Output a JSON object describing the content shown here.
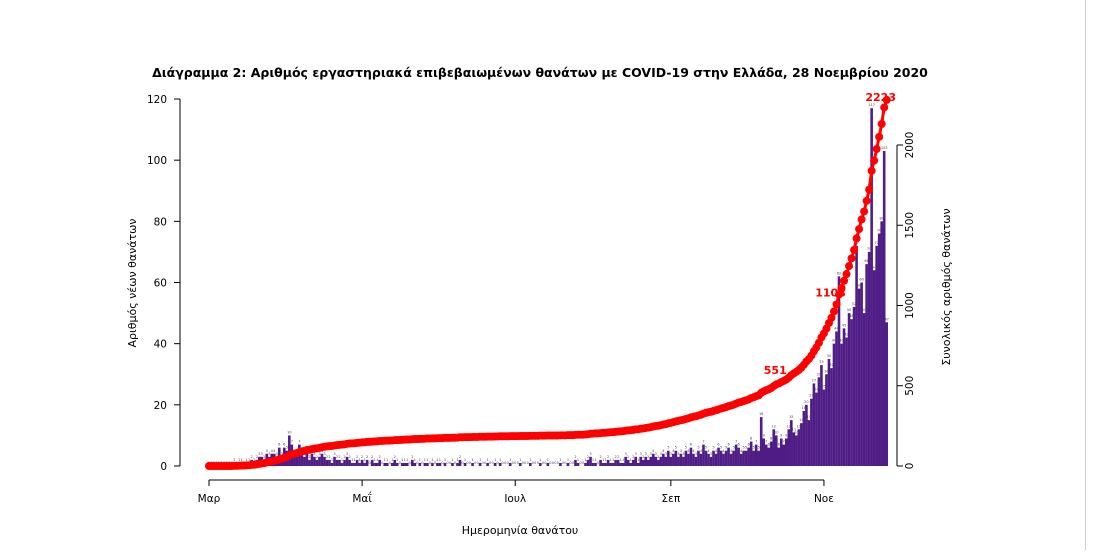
{
  "chart_data": {
    "type": "bar+line",
    "title": "Διάγραμμα 2: Αριθμός εργαστηριακά επιβεβαιωμένων θανάτων με COVID-19 στην Ελλάδα, 28 Νοεμβρίου 2020",
    "xlabel": "Ημερομηνία θανάτου",
    "ylabel_left": "Αριθμός νέων θανάτων",
    "ylabel_right": "Συνολικός αριθμός θανάτων",
    "x_start_date": "2020-03-01",
    "x_ticks": [
      {
        "label": "Μαρ",
        "day": 0
      },
      {
        "label": "Μαΐ",
        "day": 61
      },
      {
        "label": "Ιουλ",
        "day": 122
      },
      {
        "label": "Σεπ",
        "day": 184
      },
      {
        "label": "Νοε",
        "day": 245
      }
    ],
    "ylim_left": [
      0,
      120
    ],
    "yticks_left": [
      0,
      20,
      40,
      60,
      80,
      100,
      120
    ],
    "ylim_right": [
      0,
      2290
    ],
    "yticks_right": [
      0,
      500,
      1000,
      1500,
      2000
    ],
    "bar_color": "#4f1d85",
    "line_color": "#ff0000",
    "daily_deaths_by_month": {
      "Mar": [
        0,
        0,
        0,
        0,
        0,
        0,
        0,
        0,
        0,
        0,
        1,
        0,
        1,
        1,
        0,
        1,
        1,
        2,
        1,
        2,
        3,
        3,
        2,
        4,
        3,
        4,
        4,
        3,
        6,
        3,
        6
      ],
      "Apr": [
        5,
        10,
        7,
        4,
        3,
        7,
        4,
        3,
        5,
        2,
        4,
        3,
        2,
        3,
        4,
        3,
        2,
        2,
        1,
        3,
        2,
        2,
        1,
        2,
        3,
        2,
        1,
        1,
        2,
        1
      ],
      "May": [
        2,
        1,
        2,
        0,
        2,
        1,
        1,
        2,
        0,
        1,
        1,
        0,
        1,
        2,
        1,
        0,
        1,
        1,
        1,
        0,
        2,
        1,
        0,
        1,
        0,
        1,
        1,
        0,
        1,
        0,
        1
      ],
      "Jun": [
        1,
        0,
        1,
        0,
        0,
        1,
        0,
        1,
        2,
        0,
        1,
        0,
        0,
        1,
        0,
        0,
        1,
        0,
        0,
        1,
        0,
        0,
        1,
        0,
        1,
        0,
        0,
        0,
        1,
        0
      ],
      "Jul": [
        0,
        0,
        1,
        0,
        0,
        0,
        1,
        0,
        0,
        0,
        1,
        0,
        0,
        1,
        0,
        0,
        0,
        0,
        1,
        0,
        0,
        1,
        0,
        0,
        2,
        1,
        0,
        0,
        1,
        2,
        3
      ],
      "Aug": [
        1,
        1,
        0,
        2,
        1,
        1,
        2,
        1,
        1,
        2,
        2,
        1,
        1,
        3,
        2,
        1,
        2,
        3,
        1,
        3,
        2,
        3,
        2,
        3,
        4,
        3,
        2,
        3,
        4,
        3,
        5
      ],
      "Sep": [
        3,
        4,
        5,
        3,
        4,
        3,
        5,
        4,
        6,
        4,
        3,
        5,
        4,
        7,
        5,
        4,
        3,
        5,
        4,
        6,
        5,
        4,
        5,
        6,
        4,
        5,
        7,
        6,
        4,
        5
      ],
      "Oct": [
        5,
        6,
        8,
        5,
        7,
        5,
        16,
        9,
        7,
        6,
        8,
        12,
        10,
        6,
        9,
        7,
        9,
        12,
        15,
        11,
        10,
        12,
        14,
        18,
        20,
        15,
        22,
        27,
        24,
        29,
        33
      ],
      "Nov": [
        25,
        30,
        35,
        32,
        40,
        44,
        62,
        40,
        45,
        42,
        50,
        48,
        52,
        72,
        58,
        60,
        50,
        66,
        70,
        117,
        64,
        72,
        76,
        80,
        103,
        47
      ]
    },
    "annotations": [
      {
        "text": "551",
        "day": 228
      },
      {
        "text": "1108",
        "day": 250
      },
      {
        "text": "2223",
        "day": 270
      }
    ]
  }
}
